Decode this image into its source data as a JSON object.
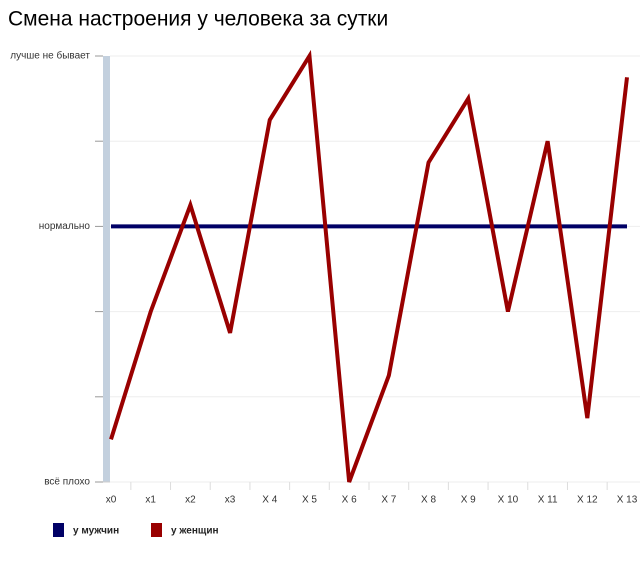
{
  "chart_data": {
    "type": "line",
    "title": "Смена настроения у человека за сутки",
    "categories": [
      "x0",
      "x1",
      "x2",
      "x3",
      "X 4",
      "X 5",
      "X 6",
      "X 7",
      "X 8",
      "X 9",
      "X 10",
      "X 11",
      "X 12",
      "X 13"
    ],
    "series": [
      {
        "name": "у мужчин",
        "color": "#000066",
        "values": [
          3,
          3,
          3,
          3,
          3,
          3,
          3,
          3,
          3,
          3,
          3,
          3,
          3,
          3
        ]
      },
      {
        "name": "у женщин",
        "color": "#990000",
        "values": [
          0.5,
          2,
          3.25,
          1.75,
          4.25,
          5,
          0,
          1.25,
          3.75,
          4.5,
          2,
          4,
          0.75,
          4.75
        ]
      }
    ],
    "ylim": [
      0,
      5
    ],
    "yticks": [
      {
        "value": 0,
        "label": "всё плохо"
      },
      {
        "value": 1,
        "label": null
      },
      {
        "value": 2,
        "label": null
      },
      {
        "value": 3,
        "label": "нормально"
      },
      {
        "value": 4,
        "label": null
      },
      {
        "value": 5,
        "label": "лучше не бывает"
      }
    ],
    "grid": true,
    "legend": "bottom-left"
  }
}
